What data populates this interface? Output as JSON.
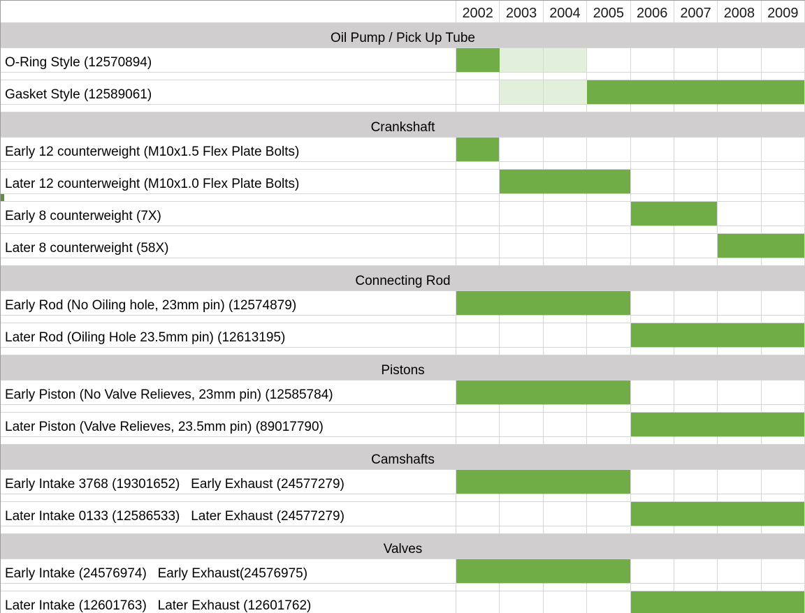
{
  "sheet": {
    "type": "parts-compatibility-grid",
    "corner_label": ""
  },
  "years": [
    "2002",
    "2003",
    "2004",
    "2005",
    "2006",
    "2007",
    "2008",
    "2009"
  ],
  "colors": {
    "bar_full": "#70AD47",
    "bar_light": "#E2EFDA",
    "section_header_bg": "#D0CECE",
    "gridline": "#D6D6D6",
    "outer_border": "#9B9B9B",
    "row_marker": "#5F9040",
    "text": "#000000"
  },
  "legend_semantics": {
    "fill_full": "part used in this model year",
    "fill_light": "partial / transitional usage"
  },
  "sections": [
    {
      "title": "Oil Pump / Pick Up Tube",
      "rows": [
        {
          "label": "O-Ring Style (12570894)",
          "cells": [
            "full",
            "light",
            "light",
            "",
            "",
            "",
            "",
            ""
          ]
        },
        {
          "label": "Gasket Style (12589061)",
          "cells": [
            "",
            "light",
            "light",
            "full",
            "full",
            "full",
            "full",
            "full"
          ]
        }
      ]
    },
    {
      "title": "Crankshaft",
      "rows": [
        {
          "label": "Early 12 counterweight (M10x1.5 Flex Plate Bolts)",
          "cells": [
            "full",
            "",
            "",
            "",
            "",
            "",
            "",
            ""
          ]
        },
        {
          "label": "Later 12 counterweight (M10x1.0 Flex Plate Bolts)",
          "cells": [
            "",
            "full",
            "full",
            "full",
            "",
            "",
            "",
            ""
          ],
          "marker_after": true
        },
        {
          "label": "Early 8 counterweight (7X)",
          "cells": [
            "",
            "",
            "",
            "",
            "full",
            "full",
            "",
            ""
          ]
        },
        {
          "label": "Later 8 counterweight (58X)",
          "cells": [
            "",
            "",
            "",
            "",
            "",
            "",
            "full",
            "full"
          ]
        }
      ]
    },
    {
      "title": "Connecting Rod",
      "rows": [
        {
          "label": "Early Rod (No Oiling hole, 23mm pin) (12574879)",
          "cells": [
            "full",
            "full",
            "full",
            "full",
            "",
            "",
            "",
            ""
          ]
        },
        {
          "label": "Later Rod (Oiling Hole 23.5mm pin) (12613195)",
          "cells": [
            "",
            "",
            "",
            "",
            "full",
            "full",
            "full",
            "full"
          ]
        }
      ]
    },
    {
      "title": "Pistons",
      "rows": [
        {
          "label": "Early Piston (No Valve Relieves, 23mm pin) (12585784)",
          "cells": [
            "full",
            "full",
            "full",
            "full",
            "",
            "",
            "",
            ""
          ]
        },
        {
          "label": "Later Piston (Valve Relieves, 23.5mm pin) (89017790)",
          "cells": [
            "",
            "",
            "",
            "",
            "full",
            "full",
            "full",
            "full"
          ]
        }
      ]
    },
    {
      "title": "Camshafts",
      "rows": [
        {
          "label": "Early Intake 3768 (19301652)   Early Exhaust (24577279)",
          "cells": [
            "full",
            "full",
            "full",
            "full",
            "",
            "",
            "",
            ""
          ]
        },
        {
          "label": "Later Intake 0133 (12586533)   Later Exhaust (24577279)",
          "cells": [
            "",
            "",
            "",
            "",
            "full",
            "full",
            "full",
            "full"
          ]
        }
      ]
    },
    {
      "title": "Valves",
      "rows": [
        {
          "label": "Early Intake (24576974)   Early Exhaust(24576975)",
          "cells": [
            "full",
            "full",
            "full",
            "full",
            "",
            "",
            "",
            ""
          ]
        },
        {
          "label": "Later Intake (12601763)   Later Exhaust (12601762)",
          "cells": [
            "",
            "",
            "",
            "",
            "full",
            "full",
            "full",
            "full"
          ]
        }
      ]
    }
  ]
}
